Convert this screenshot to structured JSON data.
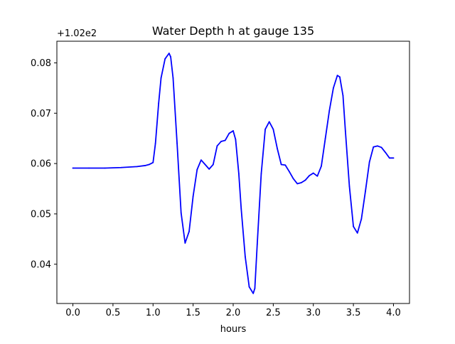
{
  "chart_data": {
    "type": "line",
    "title": "Water Depth h at gauge 135",
    "xlabel": "hours",
    "ylabel": "",
    "y_offset_label": "+1.02e2",
    "xlim": [
      -0.2,
      4.2
    ],
    "ylim": [
      0.0322,
      0.0843
    ],
    "x_ticks": [
      0.0,
      0.5,
      1.0,
      1.5,
      2.0,
      2.5,
      3.0,
      3.5,
      4.0
    ],
    "x_tick_labels": [
      "0.0",
      "0.5",
      "1.0",
      "1.5",
      "2.0",
      "2.5",
      "3.0",
      "3.5",
      "4.0"
    ],
    "y_ticks": [
      0.04,
      0.05,
      0.06,
      0.07,
      0.08
    ],
    "y_tick_labels": [
      "0.04",
      "0.05",
      "0.06",
      "0.07",
      "0.08"
    ],
    "grid": false,
    "series": [
      {
        "color": "#0000ff",
        "x": [
          0.0,
          0.2,
          0.4,
          0.6,
          0.8,
          0.9,
          0.95,
          1.0,
          1.03,
          1.07,
          1.1,
          1.15,
          1.2,
          1.22,
          1.25,
          1.3,
          1.35,
          1.4,
          1.45,
          1.5,
          1.55,
          1.6,
          1.65,
          1.7,
          1.75,
          1.8,
          1.85,
          1.9,
          1.95,
          2.0,
          2.03,
          2.07,
          2.1,
          2.15,
          2.2,
          2.25,
          2.27,
          2.3,
          2.35,
          2.4,
          2.45,
          2.5,
          2.55,
          2.6,
          2.65,
          2.7,
          2.75,
          2.8,
          2.85,
          2.9,
          2.95,
          3.0,
          3.05,
          3.1,
          3.15,
          3.2,
          3.25,
          3.3,
          3.33,
          3.37,
          3.4,
          3.45,
          3.5,
          3.55,
          3.6,
          3.65,
          3.7,
          3.75,
          3.8,
          3.85,
          3.9,
          3.95,
          4.0
        ],
        "y": [
          0.0591,
          0.0591,
          0.0591,
          0.0592,
          0.0594,
          0.0596,
          0.0598,
          0.0602,
          0.064,
          0.072,
          0.077,
          0.0808,
          0.0819,
          0.0812,
          0.077,
          0.064,
          0.0502,
          0.0442,
          0.0465,
          0.0535,
          0.0588,
          0.0607,
          0.0598,
          0.0589,
          0.0598,
          0.0635,
          0.0644,
          0.0646,
          0.066,
          0.0665,
          0.0648,
          0.058,
          0.051,
          0.0415,
          0.0355,
          0.0342,
          0.0352,
          0.044,
          0.058,
          0.0668,
          0.0683,
          0.0668,
          0.063,
          0.0598,
          0.0597,
          0.0584,
          0.057,
          0.056,
          0.0562,
          0.0567,
          0.0576,
          0.0581,
          0.0575,
          0.0595,
          0.065,
          0.0705,
          0.075,
          0.0775,
          0.0772,
          0.0735,
          0.0665,
          0.0555,
          0.0475,
          0.0462,
          0.049,
          0.0545,
          0.0603,
          0.0633,
          0.0635,
          0.0632,
          0.0622,
          0.0611,
          0.0611
        ]
      }
    ]
  }
}
